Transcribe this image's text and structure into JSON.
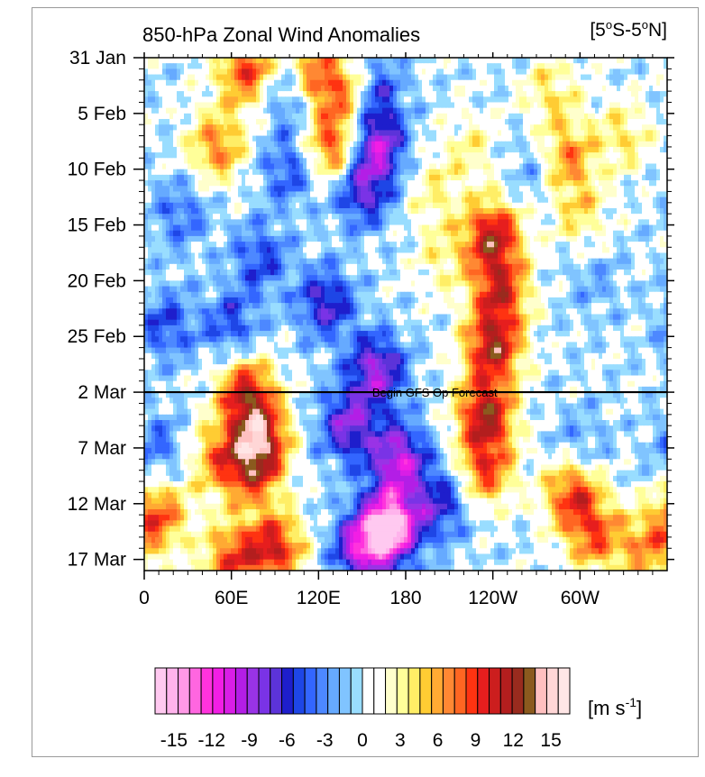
{
  "chart_data": {
    "type": "heatmap",
    "title": "850-hPa Zonal Wind Anomalies",
    "region": "[5°S-5°N]",
    "region_parts": {
      "a": "[5",
      "deg1": "o",
      "b": "S-5",
      "deg2": "o",
      "c": "N]"
    },
    "x_ticks": [
      "0",
      "60E",
      "120E",
      "180",
      "120W",
      "60W"
    ],
    "x_tick_lon": [
      0,
      60,
      120,
      180,
      240,
      300
    ],
    "x_range_lon": [
      0,
      360
    ],
    "y_ticks": [
      "31 Jan",
      "5 Feb",
      "10 Feb",
      "15 Feb",
      "20 Feb",
      "25 Feb",
      "2 Mar",
      "7 Mar",
      "12 Mar",
      "17 Mar"
    ],
    "y_tick_day": [
      0,
      5,
      10,
      15,
      20,
      25,
      30,
      35,
      40,
      45
    ],
    "y_range_day": [
      0,
      46
    ],
    "forecast_line": {
      "day": 30,
      "label": "Begin GFS Op Forecast"
    },
    "colorbar": {
      "labels": [
        "-15",
        "-12",
        "-9",
        "-6",
        "-3",
        "0",
        "3",
        "6",
        "9",
        "12",
        "15"
      ],
      "label_values": [
        -15,
        -12,
        -9,
        -6,
        -3,
        0,
        3,
        6,
        9,
        12,
        15
      ],
      "min": -16.5,
      "max": 16.5,
      "colors": [
        "#ffc9f0",
        "#ffb3ec",
        "#ff99e6",
        "#ff66e0",
        "#ff33dd",
        "#f21ee5",
        "#d91ee6",
        "#b31ee6",
        "#9933e6",
        "#7a33e6",
        "#5c33d9",
        "#1e1ecc",
        "#1e46e6",
        "#3366ff",
        "#4d88ff",
        "#66aaff",
        "#80c4ff",
        "#99ddff",
        "#ffffff",
        "#ffffff",
        "#ffffcc",
        "#ffff99",
        "#ffee66",
        "#ffcc33",
        "#ffaa33",
        "#ff8833",
        "#ff6622",
        "#ff3311",
        "#e61e1e",
        "#cc1e1e",
        "#b31e1e",
        "#992b1e",
        "#8b5a1e",
        "#ffc0c0",
        "#ffd6d6",
        "#ffe6e6"
      ],
      "unit_text": "[m s",
      "unit_exp": "-1",
      "unit_close": "]"
    },
    "anomaly_features": [
      {
        "lon": 105,
        "day": 3,
        "v": -8
      },
      {
        "lon": 155,
        "day": 3,
        "v": -10
      },
      {
        "lon": 160,
        "day": 8,
        "v": -9
      },
      {
        "lon": 150,
        "day": 12,
        "v": -7
      },
      {
        "lon": 100,
        "day": 10,
        "v": -5
      },
      {
        "lon": 80,
        "day": 18,
        "v": -5
      },
      {
        "lon": 60,
        "day": 24,
        "v": -5
      },
      {
        "lon": 125,
        "day": 22,
        "v": -7
      },
      {
        "lon": 160,
        "day": 28,
        "v": -9
      },
      {
        "lon": 140,
        "day": 33,
        "v": -8
      },
      {
        "lon": 175,
        "day": 36,
        "v": -10
      },
      {
        "lon": 170,
        "day": 42,
        "v": -15
      },
      {
        "lon": 150,
        "day": 44,
        "v": -10
      },
      {
        "lon": 205,
        "day": 40,
        "v": -6
      },
      {
        "lon": 15,
        "day": 24,
        "v": -5
      },
      {
        "lon": 25,
        "day": 14,
        "v": -4
      },
      {
        "lon": 270,
        "day": 10,
        "v": -3
      },
      {
        "lon": 10,
        "day": 35,
        "v": -4
      },
      {
        "lon": 300,
        "day": 35,
        "v": -3
      },
      {
        "lon": 310,
        "day": 20,
        "v": -2
      },
      {
        "lon": 70,
        "day": 1,
        "v": 9
      },
      {
        "lon": 115,
        "day": 2,
        "v": 11
      },
      {
        "lon": 145,
        "day": 3,
        "v": 10
      },
      {
        "lon": 130,
        "day": 8,
        "v": 9
      },
      {
        "lon": 50,
        "day": 8,
        "v": 7
      },
      {
        "lon": 240,
        "day": 16,
        "v": 11
      },
      {
        "lon": 245,
        "day": 21,
        "v": 9
      },
      {
        "lon": 240,
        "day": 26,
        "v": 11
      },
      {
        "lon": 235,
        "day": 32,
        "v": 11
      },
      {
        "lon": 235,
        "day": 37,
        "v": 8
      },
      {
        "lon": 70,
        "day": 30,
        "v": 10
      },
      {
        "lon": 80,
        "day": 34,
        "v": 10
      },
      {
        "lon": 75,
        "day": 37,
        "v": 8
      },
      {
        "lon": 50,
        "day": 36,
        "v": 6
      },
      {
        "lon": 10,
        "day": 41,
        "v": 8
      },
      {
        "lon": 90,
        "day": 44,
        "v": 10
      },
      {
        "lon": 60,
        "day": 45,
        "v": 8
      },
      {
        "lon": 295,
        "day": 39,
        "v": 9
      },
      {
        "lon": 310,
        "day": 43,
        "v": 7
      },
      {
        "lon": 345,
        "day": 44,
        "v": 6
      },
      {
        "lon": 280,
        "day": 3,
        "v": 4
      },
      {
        "lon": 300,
        "day": 14,
        "v": 4
      },
      {
        "lon": 330,
        "day": 7,
        "v": 4
      },
      {
        "lon": 290,
        "day": 9,
        "v": 7
      },
      {
        "lon": 200,
        "day": 12,
        "v": 3
      },
      {
        "lon": 225,
        "day": 8,
        "v": 3
      },
      {
        "lon": 205,
        "day": 18,
        "v": 3
      }
    ]
  }
}
